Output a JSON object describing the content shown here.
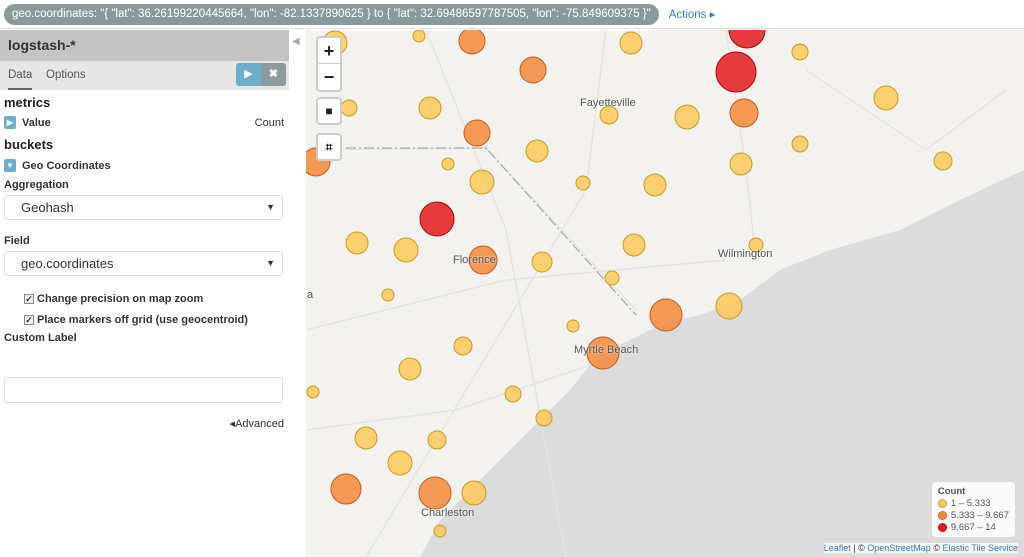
{
  "filter": {
    "text": "geo.coordinates: \"{ \"lat\": 36.26199220445664, \"lon\": -82.1337890625 } to { \"lat\": 32.69486597787505, \"lon\": -75.849609375 }\"",
    "actions": "Actions ▸"
  },
  "sidebar": {
    "index": "logstash-*",
    "tabs": [
      "Data",
      "Options"
    ],
    "play_icon": "▶",
    "close_icon": "✖",
    "metrics_heading": "metrics",
    "metric_label": "Value",
    "metric_value": "Count",
    "buckets_heading": "buckets",
    "bucket_label": "Geo Coordinates",
    "aggregation_label": "Aggregation",
    "aggregation_value": "Geohash",
    "field_label": "Field",
    "field_value": "geo.coordinates",
    "check1": "Change precision on map zoom",
    "check2": "Place markers off grid (use geocentroid)",
    "custom_label": "Custom Label",
    "custom_value": "",
    "advanced": "◂Advanced"
  },
  "map": {
    "zoom_in": "+",
    "zoom_out": "−",
    "labels": {
      "fayetteville": "Fayetteville",
      "wilmington": "Wilmington",
      "florence": "Florence",
      "myrtle": "Myrtle Beach",
      "charleston": "Charleston",
      "edge": "a"
    },
    "legend": {
      "title": "Count",
      "items": [
        {
          "label": "1 – 5.333",
          "color": "#fdc95a"
        },
        {
          "label": "5.333 – 9.667",
          "color": "#f58a3c"
        },
        {
          "label": "9.667 – 14",
          "color": "#e31a1c"
        }
      ]
    },
    "attribution": {
      "leaflet": "Leaflet",
      "sep": " | © ",
      "osm": "OpenStreetMap",
      "sep2": " © ",
      "ets": "Elastic Tile Service"
    }
  }
}
